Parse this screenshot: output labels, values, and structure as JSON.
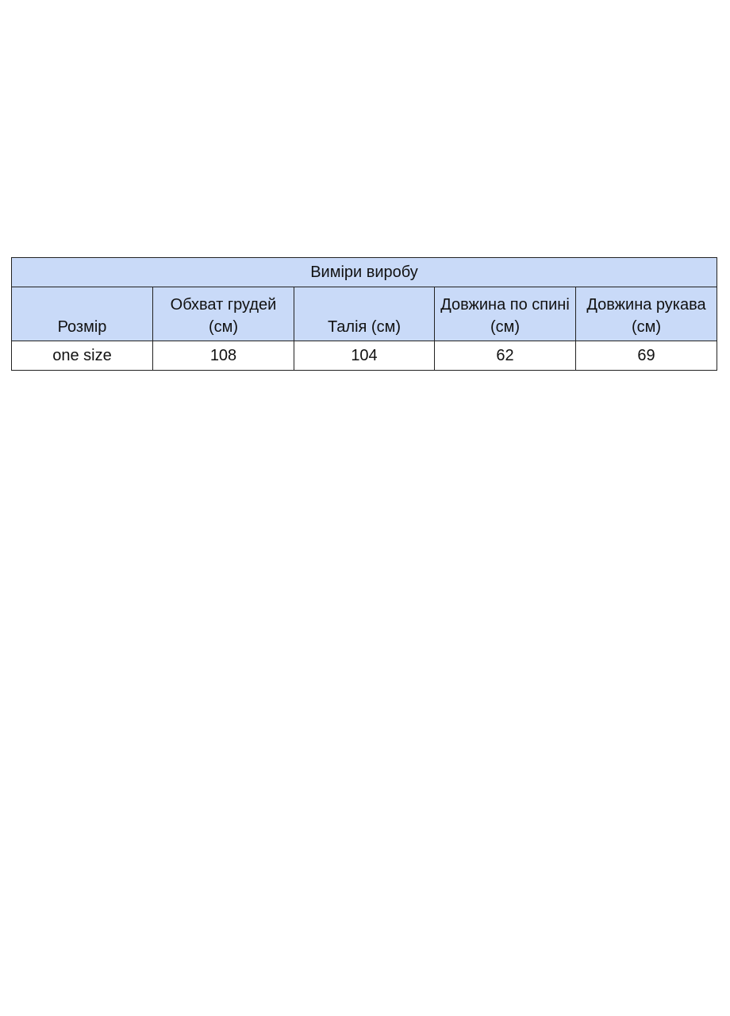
{
  "table": {
    "title": "Виміри виробу",
    "headers": [
      "Розмір",
      "Обхват грудей (см)",
      "Талія (см)",
      "Довжина по спині (см)",
      "Довжина рукава (см)"
    ],
    "rows": [
      [
        "one size",
        "108",
        "104",
        "62",
        "69"
      ]
    ],
    "header_bg": "#c9daf8"
  }
}
